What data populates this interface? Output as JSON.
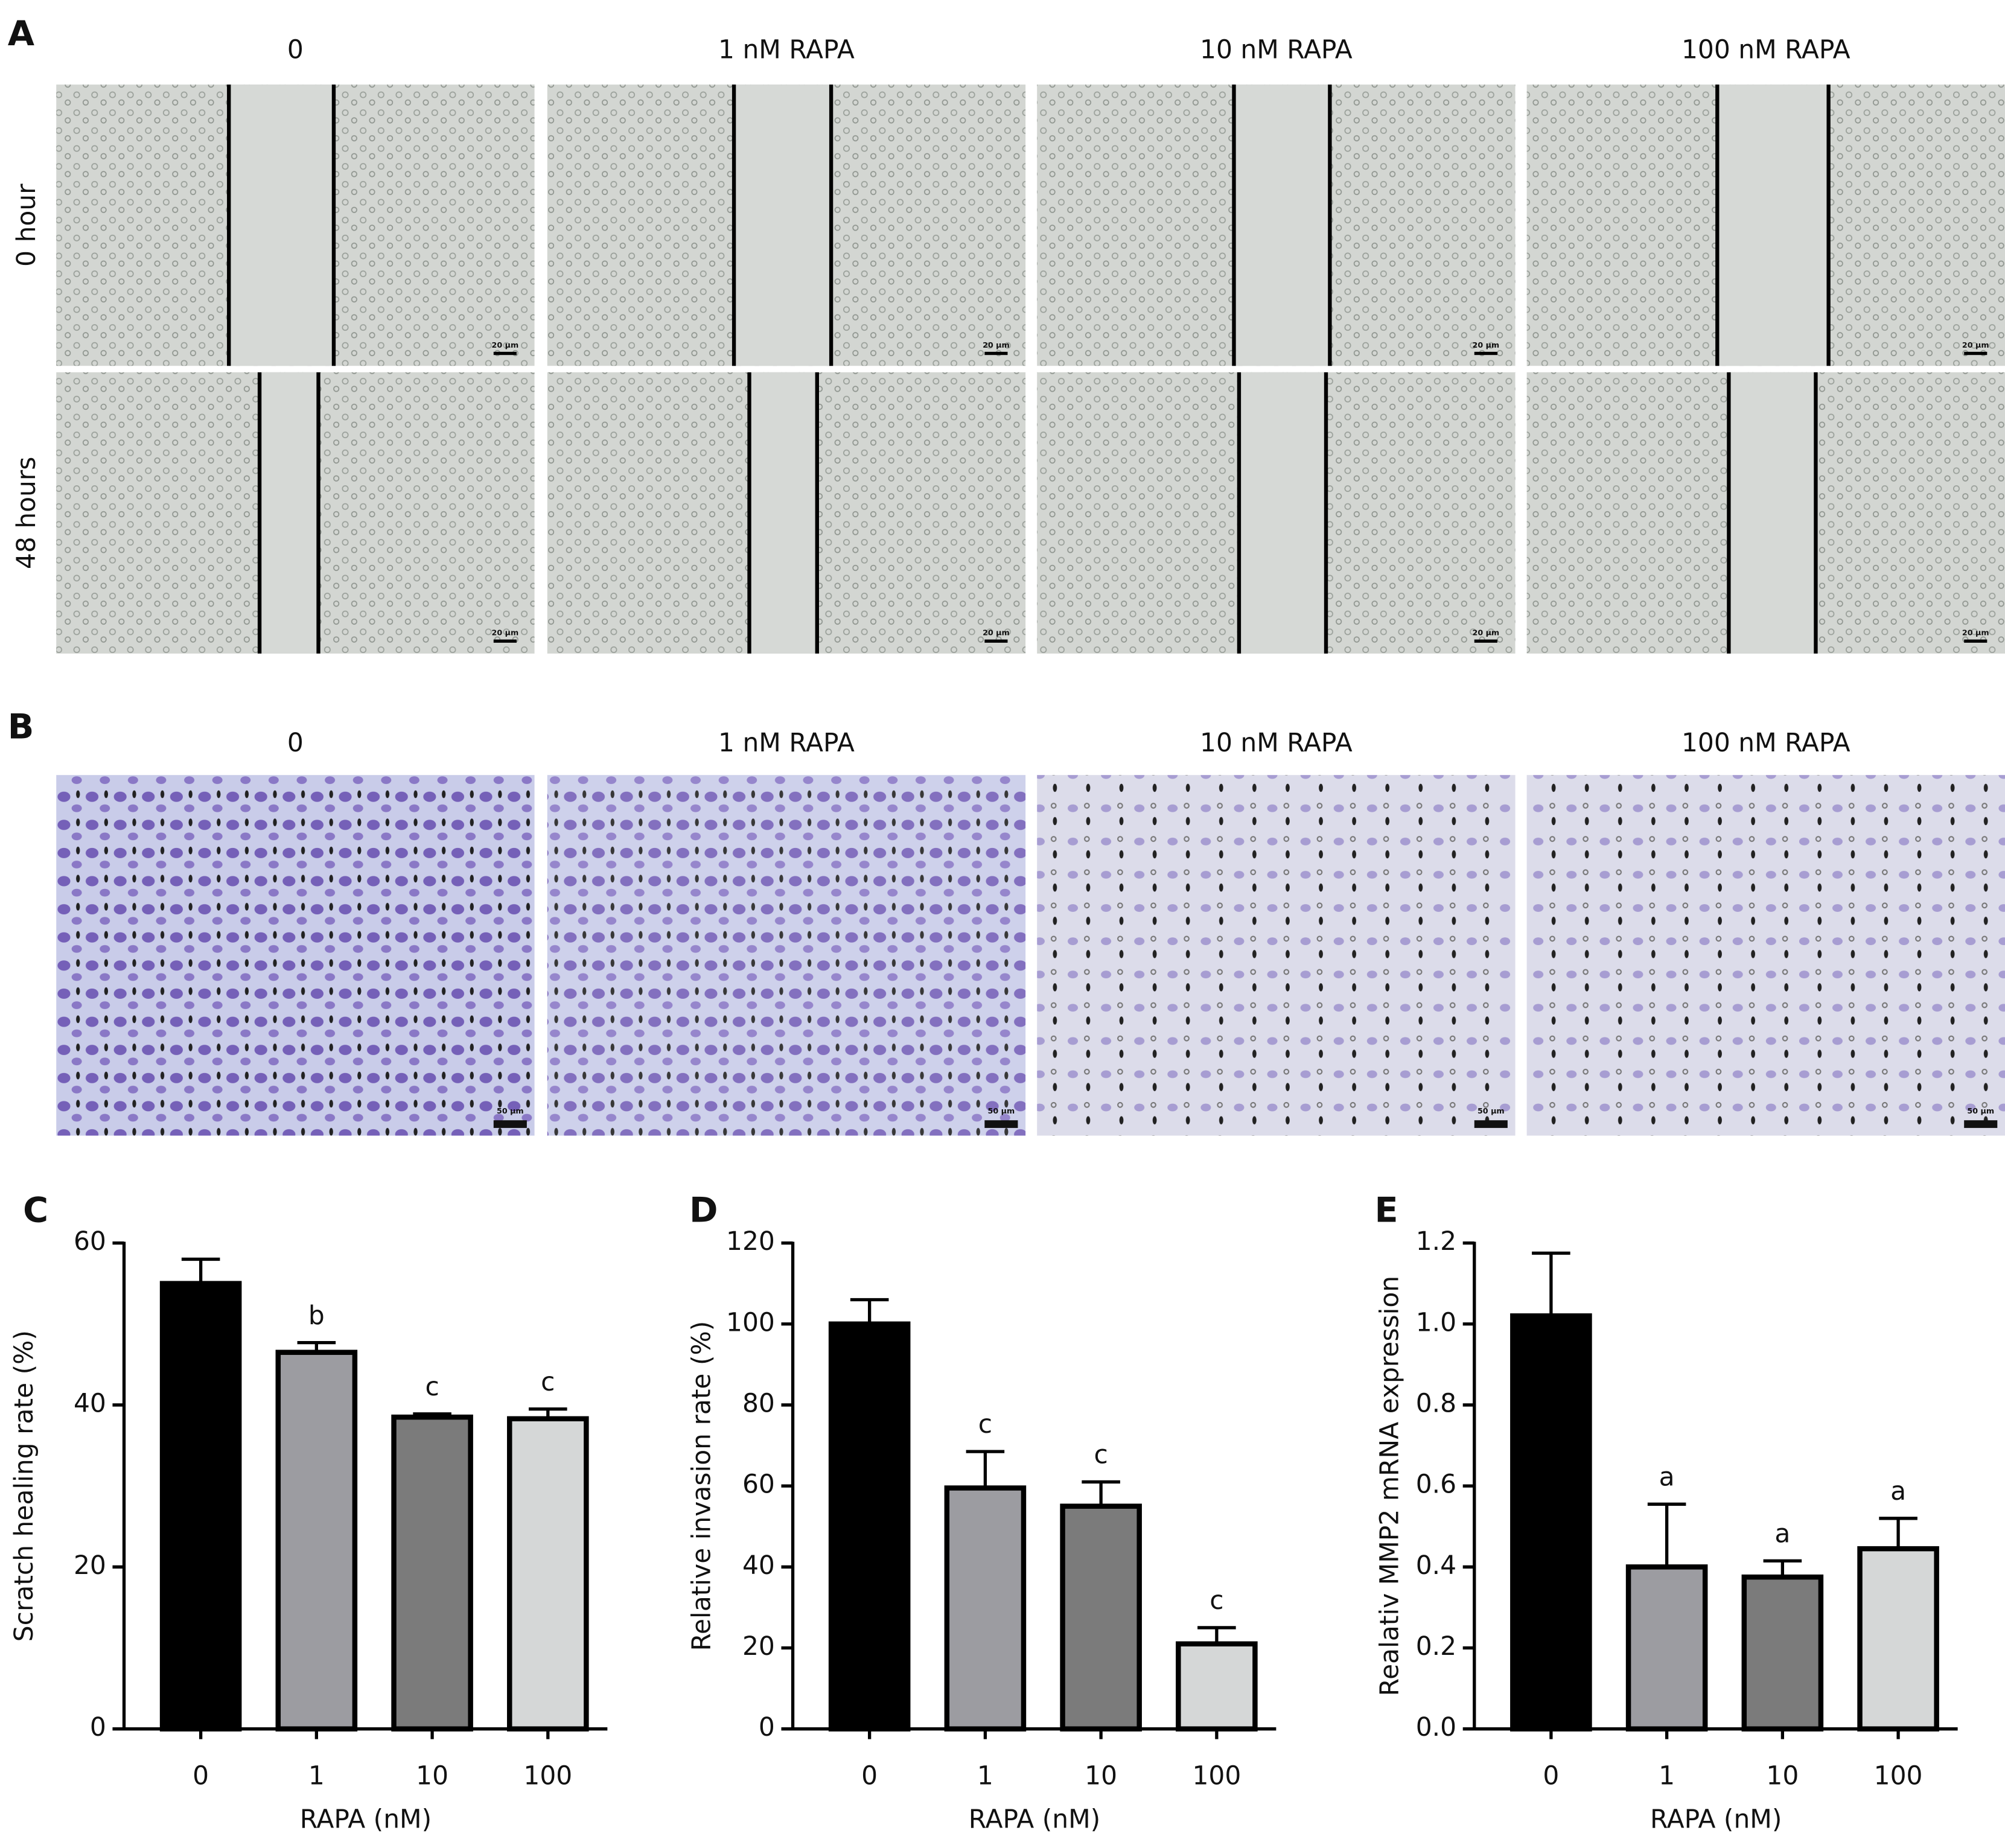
{
  "panel_a": {
    "label": "A",
    "columns": [
      "0",
      "1 nM RAPA",
      "10 nM RAPA",
      "100 nM RAPA"
    ],
    "rows": [
      "0 hour",
      "48 hours"
    ],
    "scale_bar": "20 μm"
  },
  "panel_b": {
    "label": "B",
    "columns": [
      "0",
      "1 nM RAPA",
      "10 nM RAPA",
      "100 nM RAPA"
    ],
    "scale_bar": "50 μm"
  },
  "chart_data": [
    {
      "type": "bar",
      "label": "C",
      "categories": [
        "0",
        "1",
        "10",
        "100"
      ],
      "x_label": "RAPA (nM)",
      "y_label": "Scratch healing rate (%)",
      "values": [
        55,
        46.5,
        38.5,
        38.3
      ],
      "errors": [
        3,
        1.2,
        0.4,
        1.2
      ],
      "annotations": [
        null,
        "b",
        "c",
        "c"
      ],
      "colors": [
        "#000000",
        "#9c9ca1",
        "#7b7b7b",
        "#d5d7d7"
      ],
      "ylim": [
        0,
        60
      ],
      "yticks": [
        0,
        20,
        40,
        60
      ]
    },
    {
      "type": "bar",
      "label": "D",
      "categories": [
        "0",
        "1",
        "10",
        "100"
      ],
      "x_label": "RAPA (nM)",
      "y_label": "Relative invasion rate (%)",
      "values": [
        100,
        59.5,
        55,
        21
      ],
      "errors": [
        6,
        9,
        6,
        4
      ],
      "annotations": [
        null,
        "c",
        "c",
        "c"
      ],
      "colors": [
        "#000000",
        "#9c9ca1",
        "#7b7b7b",
        "#d5d7d7"
      ],
      "ylim": [
        0,
        120
      ],
      "yticks": [
        0,
        20,
        40,
        60,
        80,
        100,
        120
      ]
    },
    {
      "type": "bar",
      "label": "E",
      "categories": [
        "0",
        "1",
        "10",
        "100"
      ],
      "x_label": "RAPA (nM)",
      "y_label": "Realativ MMP2 mRNA expression",
      "values": [
        1.02,
        0.4,
        0.375,
        0.445
      ],
      "errors": [
        0.155,
        0.155,
        0.04,
        0.075
      ],
      "annotations": [
        null,
        "a",
        "a",
        "a"
      ],
      "colors": [
        "#000000",
        "#9c9ca1",
        "#7b7b7b",
        "#d5d7d7"
      ],
      "ylim": [
        0,
        1.2
      ],
      "yticks": [
        {
          "value": 0,
          "label": "0.0"
        },
        0.2,
        0.4,
        0.6,
        0.8,
        {
          "value": 1,
          "label": "1.0"
        },
        1.2
      ]
    }
  ]
}
